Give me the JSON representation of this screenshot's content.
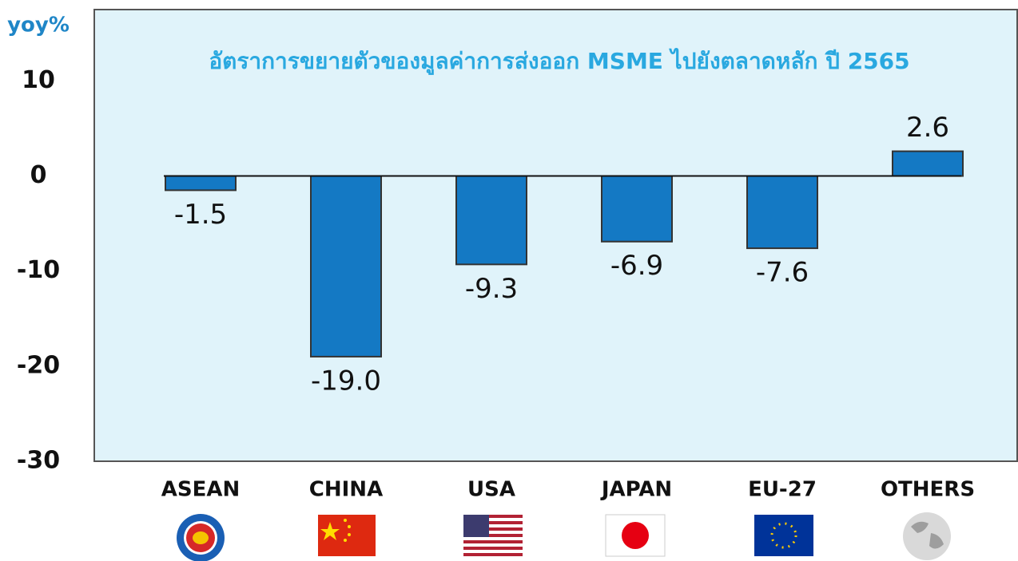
{
  "chart_data": {
    "type": "bar",
    "title": "อัตราการขยายตัวของมูลค่าการส่งออก MSME ไปยังตลาดหลัก ปี 2565",
    "y_label": "yoy%",
    "categories": [
      "ASEAN",
      "CHINA",
      "USA",
      "JAPAN",
      "EU-27",
      "OTHERS"
    ],
    "values": [
      -1.5,
      -19.0,
      -9.3,
      -6.9,
      -7.6,
      2.6
    ],
    "value_labels": [
      "-1.5",
      "-19.0",
      "-9.3",
      "-6.9",
      "-7.6",
      "2.6"
    ],
    "color": "#1479c4",
    "ylim": [
      -30,
      17.5
    ],
    "yticks": [
      -30,
      -20,
      -10,
      0,
      10
    ]
  }
}
